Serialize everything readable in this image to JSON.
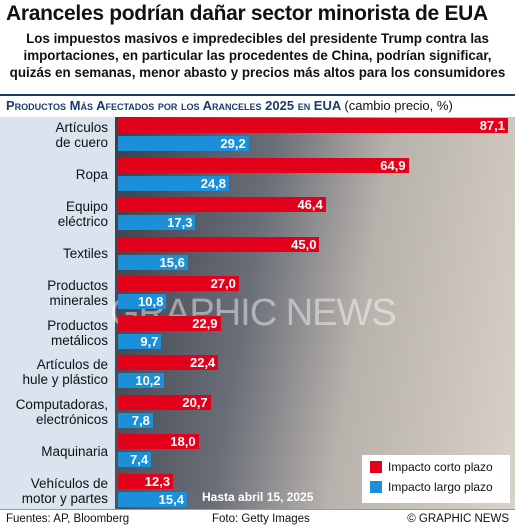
{
  "header": {
    "title": "Aranceles podrían dañar sector minorista de EUA",
    "subtitle": "Los impuestos masivos e impredecibles del presidente Trump contra las importaciones, en particular las procedentes de China, podrían significar, quizás en semanas, menor abasto y precios más altos para los consumidores"
  },
  "chart_data": {
    "type": "bar",
    "orientation": "horizontal",
    "title": "Productos Más Afectados por los Aranceles 2025 en EUA",
    "unit": "(cambio precio, %)",
    "categories": [
      "Artículos\nde cuero",
      "Ropa",
      "Equipo\neléctrico",
      "Textiles",
      "Productos\nminerales",
      "Productos\nmetálicos",
      "Artículos de\nhule y plástico",
      "Computadoras,\nelectrónicos",
      "Maquinaria",
      "Vehículos de\nmotor y  partes"
    ],
    "series": [
      {
        "name": "Impacto corto plazo",
        "color": "#e2001a",
        "values": [
          87.1,
          64.9,
          46.4,
          45.0,
          27.0,
          22.9,
          22.4,
          20.7,
          18.0,
          12.3
        ],
        "value_labels": [
          "87,1",
          "64,9",
          "46,4",
          "45,0",
          "27,0",
          "22,9",
          "22,4",
          "20,7",
          "18,0",
          "12,3"
        ]
      },
      {
        "name": "Impacto largo plazo",
        "color": "#1b8fd8",
        "values": [
          29.2,
          24.8,
          17.3,
          15.6,
          10.8,
          9.7,
          10.2,
          7.8,
          7.4,
          15.4
        ],
        "value_labels": [
          "29,2",
          "24,8",
          "17,3",
          "15,6",
          "10,8",
          "9,7",
          "10,2",
          "7,8",
          "7,4",
          "15,4"
        ]
      }
    ],
    "annotation": "Hasta abril 15, 2025",
    "legend": "bottom-right"
  },
  "footer": {
    "sources": "Fuentes: AP, Bloomberg",
    "photo": "Foto: Getty Images",
    "credit": "© GRAPHIC NEWS"
  },
  "watermark": "GRAPHIC NEWS"
}
